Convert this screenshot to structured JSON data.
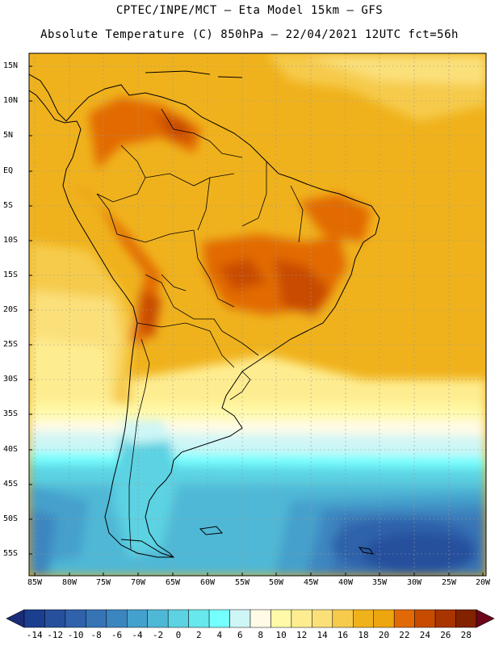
{
  "title_line1": "CPTEC/INPE/MCT –  Eta Model 15km – GFS",
  "title_line2": "Absolute Temperature (C) 850hPa – 22/04/2021 12UTC fct=56h",
  "lat_labels": [
    "15N",
    "10N",
    "5N",
    "EQ",
    "5S",
    "10S",
    "15S",
    "20S",
    "25S",
    "30S",
    "35S",
    "40S",
    "45S",
    "50S",
    "55S"
  ],
  "lon_labels": [
    "85W",
    "80W",
    "75W",
    "70W",
    "65W",
    "60W",
    "55W",
    "50W",
    "45W",
    "40W",
    "35W",
    "30W",
    "25W",
    "20W"
  ],
  "colorbar": {
    "labels": [
      "-14",
      "-12",
      "-10",
      "-8",
      "-6",
      "-4",
      "-2",
      "0",
      "2",
      "4",
      "6",
      "8",
      "10",
      "12",
      "14",
      "16",
      "18",
      "20",
      "22",
      "24",
      "26",
      "28"
    ],
    "colors": [
      "#1c3e8e",
      "#27509c",
      "#2f62aa",
      "#3774b6",
      "#3c86c0",
      "#44a0cc",
      "#4fb8d6",
      "#5cd2e2",
      "#66e8ec",
      "#76ffff",
      "#cef6f6",
      "#fffbe6",
      "#fff9a8",
      "#feed90",
      "#fbe07a",
      "#f6cb4c",
      "#f0b21c",
      "#eda60e",
      "#e26a06",
      "#c84c00",
      "#a83400",
      "#822200"
    ],
    "low_color": "#1a2c78",
    "high_color": "#6e0418"
  }
}
